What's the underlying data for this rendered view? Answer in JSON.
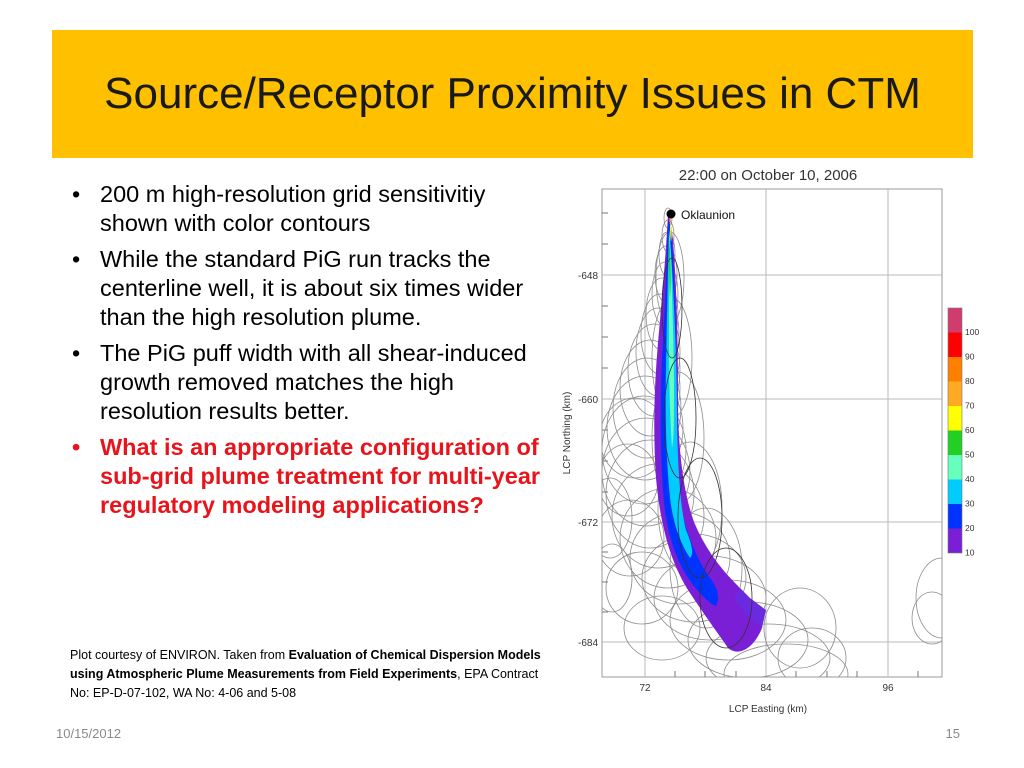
{
  "slide": {
    "title": "Source/Receptor Proximity Issues in CTM",
    "bullets": [
      {
        "text": "200 m high-resolution grid sensitivitiy shown with color contours",
        "highlight": false
      },
      {
        "text": "While the standard PiG run tracks the centerline well, it is about six times wider than the high resolution plume.",
        "highlight": false
      },
      {
        "text": "The PiG puff width with all shear-induced growth removed matches the high resolution results better.",
        "highlight": false
      },
      {
        "text": "What is an appropriate configuration of sub-grid plume treatment for multi-year regulatory modeling applications?",
        "highlight": true
      }
    ],
    "bullet_symbol": "•",
    "caption": {
      "prefix": "Plot courtesy of ENVIRON. Taken from ",
      "bold": "Evaluation of Chemical Dispersion Models using Atmospheric Plume Measurements from Field Experiments",
      "suffix": ", EPA Contract No: EP-D-07-102, WA No: 4-06 and 5-08"
    },
    "footer": {
      "date": "10/15/2012",
      "page": "15"
    },
    "accent_color": "#ffc000",
    "highlight_color": "#e8141b"
  },
  "chart_data": {
    "type": "heatmap",
    "title": "22:00 on October 10, 2006",
    "xlabel": "LCP Easting (km)",
    "ylabel": "LCP Northing (km)",
    "x_ticks": [
      "72",
      "84",
      "96"
    ],
    "y_ticks": [
      "-648",
      "-660",
      "-672",
      "-684"
    ],
    "source_label": "Oklaunion",
    "colorbar": {
      "labels": [
        "100",
        "90",
        "80",
        "70",
        "60",
        "50",
        "40",
        "30",
        "20",
        "10"
      ],
      "colors": [
        "#d03c6e",
        "#ff0000",
        "#ff7f00",
        "#ffaa22",
        "#ffff00",
        "#22d022",
        "#66ffbb",
        "#00ccff",
        "#0033ff",
        "#7a1fd6"
      ]
    }
  }
}
